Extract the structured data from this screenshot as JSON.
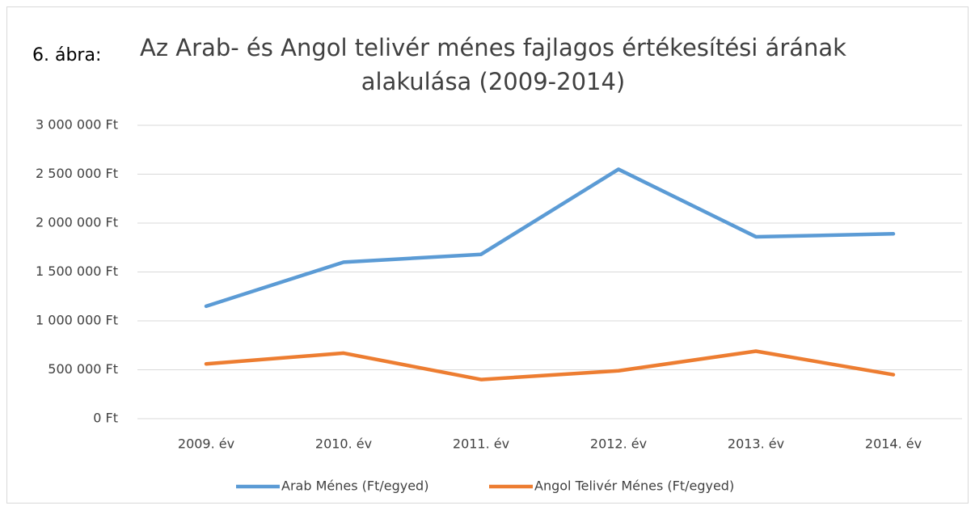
{
  "chart_data": {
    "type": "line",
    "label": "6. ábra:",
    "title": "Az Arab- és Angol telivér ménes fajlagos értékesítési árának alakulása (2009-2014)",
    "categories": [
      "2009. év",
      "2010. év",
      "2011. év",
      "2012. év",
      "2013. év",
      "2014. év"
    ],
    "series": [
      {
        "name": "Arab Ménes (Ft/egyed)",
        "color": "#5b9bd5",
        "values": [
          1150000,
          1600000,
          1680000,
          2550000,
          1860000,
          1890000
        ]
      },
      {
        "name": "Angol Telivér Ménes (Ft/egyed)",
        "color": "#ed7d31",
        "values": [
          560000,
          670000,
          400000,
          490000,
          690000,
          450000
        ]
      }
    ],
    "ylim": [
      0,
      3000000
    ],
    "yticks": [
      {
        "value": 0,
        "label": "0 Ft"
      },
      {
        "value": 500000,
        "label": "500 000 Ft"
      },
      {
        "value": 1000000,
        "label": "1 000 000 Ft"
      },
      {
        "value": 1500000,
        "label": "1 500 000 Ft"
      },
      {
        "value": 2000000,
        "label": "2 000 000 Ft"
      },
      {
        "value": 2500000,
        "label": "2 500 000 Ft"
      },
      {
        "value": 3000000,
        "label": "3 000 000 Ft"
      }
    ],
    "grid": true,
    "legend": "bottom"
  }
}
